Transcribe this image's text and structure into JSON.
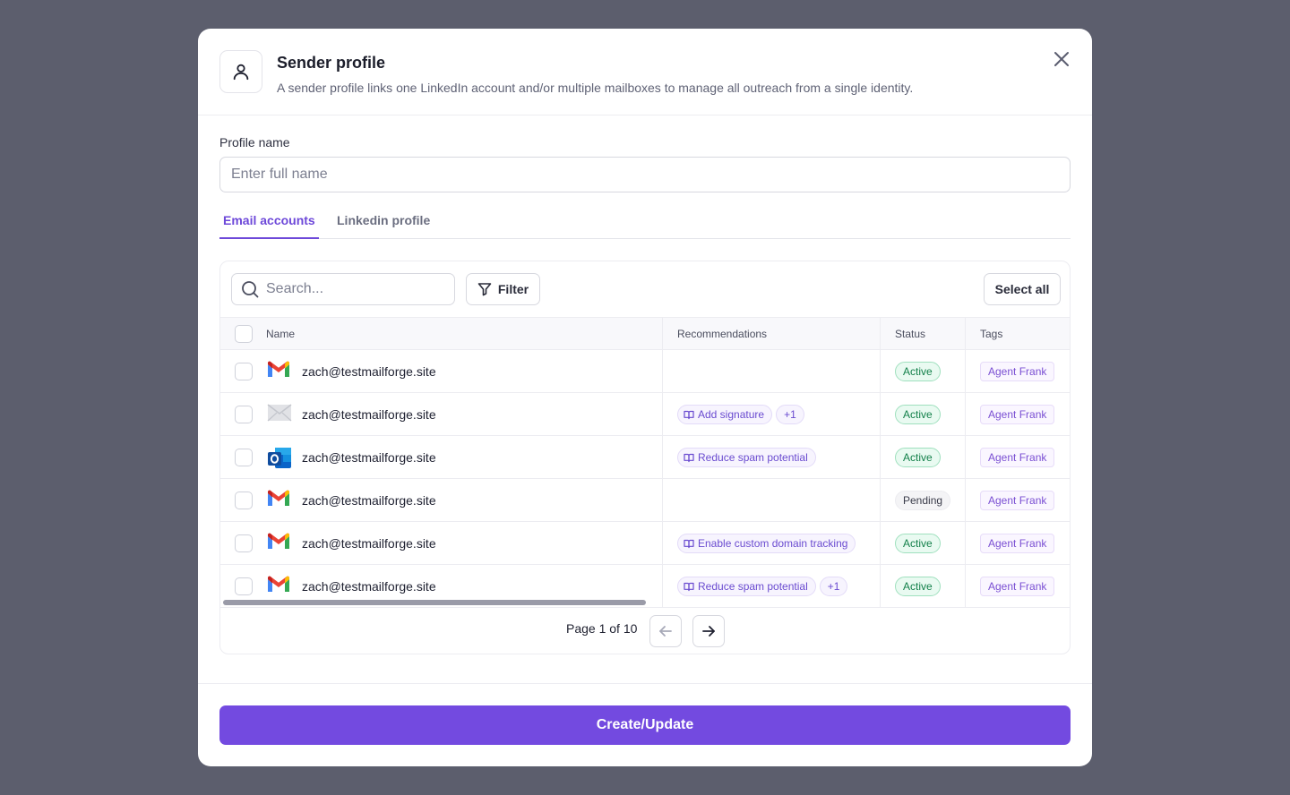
{
  "modal": {
    "title": "Sender profile",
    "subtitle": "A sender profile links one LinkedIn account and/or multiple mailboxes to manage all outreach from a single identity."
  },
  "form": {
    "profile_label": "Profile name",
    "profile_placeholder": "Enter full name",
    "profile_value": ""
  },
  "tabs": [
    {
      "label": "Email accounts",
      "active": true
    },
    {
      "label": "Linkedin profile",
      "active": false
    }
  ],
  "toolbar": {
    "search_placeholder": "Search...",
    "filter_label": "Filter",
    "select_all_label": "Select all"
  },
  "table": {
    "columns": {
      "name": "Name",
      "recommendations": "Recommendations",
      "status": "Status",
      "tags": "Tags"
    },
    "rows": [
      {
        "provider": "gmail-icon",
        "email": "zach@testmailforge.site",
        "recommendations": [],
        "extra": "",
        "status": "Active",
        "tag": "Agent Frank"
      },
      {
        "provider": "generic-mail-icon",
        "email": "zach@testmailforge.site",
        "recommendations": [
          "Add signature"
        ],
        "extra": "+1",
        "status": "Active",
        "tag": "Agent Frank"
      },
      {
        "provider": "outlook-icon",
        "email": "zach@testmailforge.site",
        "recommendations": [
          "Reduce spam potential"
        ],
        "extra": "",
        "status": "Active",
        "tag": "Agent Frank"
      },
      {
        "provider": "gmail-icon",
        "email": "zach@testmailforge.site",
        "recommendations": [],
        "extra": "",
        "status": "Pending",
        "tag": "Agent Frank"
      },
      {
        "provider": "gmail-icon",
        "email": "zach@testmailforge.site",
        "recommendations": [
          "Enable custom domain tracking"
        ],
        "extra": "",
        "status": "Active",
        "tag": "Agent Frank"
      },
      {
        "provider": "gmail-icon",
        "email": "zach@testmailforge.site",
        "recommendations": [
          "Reduce spam potential"
        ],
        "extra": "+1",
        "status": "Active",
        "tag": "Agent Frank"
      }
    ]
  },
  "pagination": {
    "text": "Page 1 of 10"
  },
  "footer": {
    "primary_label": "Create/Update"
  },
  "colors": {
    "accent": "#734ae0",
    "tab_active": "#6d48d9",
    "status_active": "#13804a",
    "tag_text": "#7a4fd3",
    "backdrop": "#5c5e6d"
  }
}
